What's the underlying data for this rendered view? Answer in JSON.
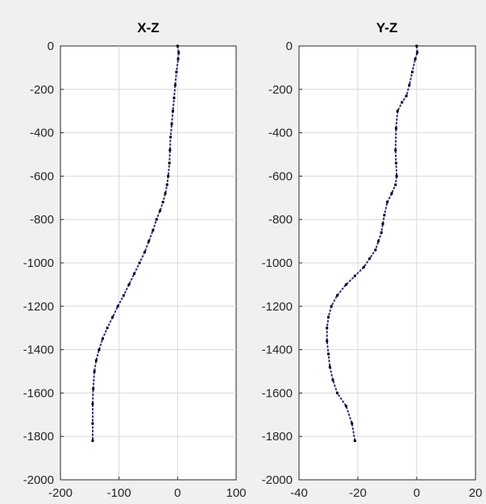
{
  "figure": {
    "background": "#f0f0f0"
  },
  "chart_data": [
    {
      "type": "line",
      "title": "X-Z",
      "xlabel": "",
      "ylabel": "",
      "xlim": [
        -200,
        100
      ],
      "ylim": [
        -2000,
        0
      ],
      "xticks": [
        -200,
        -100,
        0,
        100
      ],
      "yticks": [
        0,
        -200,
        -400,
        -600,
        -800,
        -1000,
        -1200,
        -1400,
        -1600,
        -1800,
        -2000
      ],
      "grid": true,
      "line_color": "#3c2a78",
      "marker_color": "#000000",
      "series": [
        {
          "x": [
            0,
            2,
            1,
            -2,
            -4,
            -6,
            -8,
            -10,
            -12,
            -13,
            -14,
            -16,
            -18,
            -21,
            -25,
            -30,
            -36,
            -42,
            -49,
            -56,
            -65,
            -74,
            -83,
            -92,
            -102,
            -111,
            -120,
            -128,
            -134,
            -139,
            -142,
            -144,
            -145,
            -145,
            -145
          ],
          "y": [
            0,
            -30,
            -60,
            -120,
            -180,
            -240,
            -300,
            -360,
            -420,
            -480,
            -540,
            -600,
            -640,
            -680,
            -720,
            -760,
            -800,
            -850,
            -900,
            -950,
            -1000,
            -1050,
            -1100,
            -1150,
            -1200,
            -1250,
            -1300,
            -1350,
            -1400,
            -1450,
            -1500,
            -1580,
            -1650,
            -1740,
            -1820
          ]
        }
      ]
    },
    {
      "type": "line",
      "title": "Y-Z",
      "xlabel": "",
      "ylabel": "",
      "xlim": [
        -40,
        20
      ],
      "ylim": [
        -2000,
        0
      ],
      "xticks": [
        -40,
        -20,
        0,
        20
      ],
      "yticks": [
        0,
        -200,
        -400,
        -600,
        -800,
        -1000,
        -1200,
        -1400,
        -1600,
        -1800,
        -2000
      ],
      "grid": true,
      "line_color": "#3c2a78",
      "marker_color": "#000000",
      "series": [
        {
          "x": [
            0,
            0.2,
            -0.5,
            -1.5,
            -2.5,
            -3.5,
            -5,
            -6.5,
            -7,
            -7.2,
            -7,
            -6.8,
            -7.2,
            -8.5,
            -10,
            -11,
            -11.5,
            -12,
            -13,
            -14,
            -16,
            -18,
            -21,
            -24,
            -27,
            -29,
            -30,
            -30.5,
            -30.5,
            -30,
            -29.5,
            -28.5,
            -27,
            -24,
            -22,
            -21
          ],
          "y": [
            0,
            -30,
            -60,
            -120,
            -180,
            -230,
            -260,
            -300,
            -380,
            -480,
            -540,
            -600,
            -640,
            -680,
            -720,
            -780,
            -820,
            -860,
            -900,
            -940,
            -980,
            -1020,
            -1060,
            -1100,
            -1150,
            -1200,
            -1250,
            -1300,
            -1360,
            -1420,
            -1480,
            -1540,
            -1600,
            -1660,
            -1740,
            -1820
          ]
        }
      ]
    }
  ]
}
